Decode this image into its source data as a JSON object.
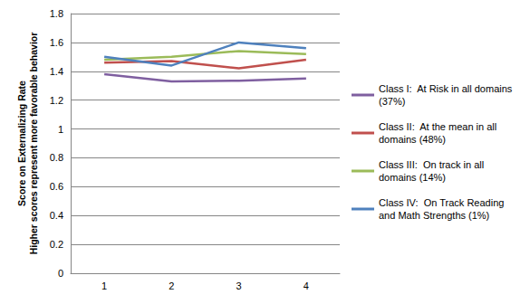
{
  "chart_data": {
    "type": "line",
    "y_label": "Score on Externalizing Rate\nHigher scores represent more favorable behavior",
    "categories": [
      "1",
      "2",
      "3",
      "4"
    ],
    "series": [
      {
        "name": "Class I:  At Risk in all domains (37%)",
        "color": "#7f5fa0",
        "values": [
          1.38,
          1.33,
          1.335,
          1.35
        ]
      },
      {
        "name": "Class II:  At the mean in all domains (48%)",
        "color": "#c0504d",
        "values": [
          1.46,
          1.47,
          1.42,
          1.48
        ]
      },
      {
        "name": "Class III:  On track in all domains (14%)",
        "color": "#9bbb59",
        "values": [
          1.48,
          1.5,
          1.54,
          1.52
        ]
      },
      {
        "name": "Class IV:  On Track Reading and Math Strengths (1%)",
        "color": "#4f81bd",
        "values": [
          1.5,
          1.44,
          1.6,
          1.56
        ]
      }
    ],
    "ylim": [
      0,
      1.8
    ],
    "yticks": [
      0,
      0.2,
      0.4,
      0.6,
      0.8,
      1,
      1.2,
      1.4,
      1.6,
      1.8
    ],
    "grid": true,
    "legend": "right",
    "marker": "none"
  }
}
